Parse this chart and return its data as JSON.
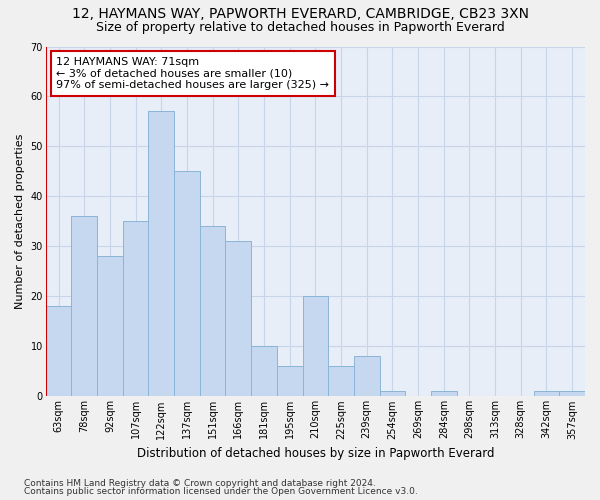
{
  "title": "12, HAYMANS WAY, PAPWORTH EVERARD, CAMBRIDGE, CB23 3XN",
  "subtitle": "Size of property relative to detached houses in Papworth Everard",
  "xlabel": "Distribution of detached houses by size in Papworth Everard",
  "ylabel": "Number of detached properties",
  "categories": [
    "63sqm",
    "78sqm",
    "92sqm",
    "107sqm",
    "122sqm",
    "137sqm",
    "151sqm",
    "166sqm",
    "181sqm",
    "195sqm",
    "210sqm",
    "225sqm",
    "239sqm",
    "254sqm",
    "269sqm",
    "284sqm",
    "298sqm",
    "313sqm",
    "328sqm",
    "342sqm",
    "357sqm"
  ],
  "values": [
    18,
    36,
    28,
    35,
    57,
    45,
    34,
    31,
    10,
    6,
    20,
    6,
    8,
    1,
    0,
    1,
    0,
    0,
    0,
    1,
    1
  ],
  "bar_color": "#c5d8f0",
  "bar_edge_color": "#8ab4d8",
  "highlight_line_color": "#cc0000",
  "annotation_text": "12 HAYMANS WAY: 71sqm\n← 3% of detached houses are smaller (10)\n97% of semi-detached houses are larger (325) →",
  "annotation_box_color": "#ffffff",
  "annotation_box_edge_color": "#cc0000",
  "ylim": [
    0,
    70
  ],
  "yticks": [
    0,
    10,
    20,
    30,
    40,
    50,
    60,
    70
  ],
  "grid_color": "#c8d4e8",
  "plot_bg_color": "#e8eef8",
  "fig_bg_color": "#f0f0f0",
  "footer_line1": "Contains HM Land Registry data © Crown copyright and database right 2024.",
  "footer_line2": "Contains public sector information licensed under the Open Government Licence v3.0.",
  "title_fontsize": 10,
  "subtitle_fontsize": 9,
  "xlabel_fontsize": 8.5,
  "ylabel_fontsize": 8,
  "tick_fontsize": 7,
  "footer_fontsize": 6.5,
  "annotation_fontsize": 8
}
